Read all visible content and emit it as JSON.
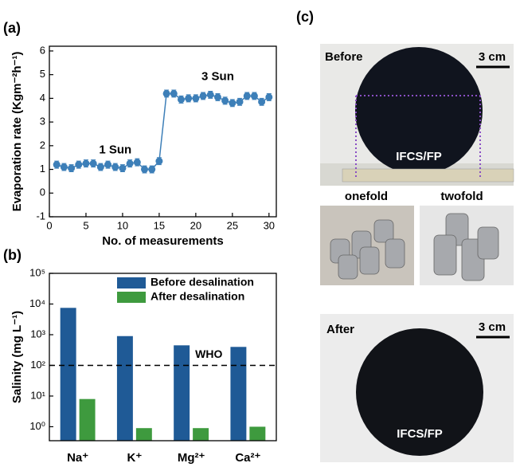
{
  "chart_data": [
    {
      "type": "line",
      "panel_label": "(a)",
      "xlabel": "No. of measurements",
      "ylabel": "Evaporation rate (Kgm⁻²h⁻¹)",
      "x": [
        1,
        2,
        3,
        4,
        5,
        6,
        7,
        8,
        9,
        10,
        11,
        12,
        13,
        14,
        15,
        16,
        17,
        18,
        19,
        20,
        21,
        22,
        23,
        24,
        25,
        26,
        27,
        28,
        29,
        30
      ],
      "series": [
        {
          "color": "#3d7fb8",
          "values": [
            1.2,
            1.1,
            1.05,
            1.2,
            1.25,
            1.25,
            1.1,
            1.2,
            1.1,
            1.05,
            1.25,
            1.3,
            1.0,
            1.0,
            1.35,
            4.2,
            4.2,
            3.95,
            4.0,
            4.0,
            4.1,
            4.15,
            4.05,
            3.9,
            3.8,
            3.85,
            4.1,
            4.1,
            3.85,
            4.05
          ],
          "errors": [
            0.15,
            0.15,
            0.15,
            0.15,
            0.15,
            0.15,
            0.15,
            0.15,
            0.15,
            0.15,
            0.15,
            0.15,
            0.15,
            0.15,
            0.15,
            0.15,
            0.15,
            0.15,
            0.15,
            0.15,
            0.15,
            0.15,
            0.15,
            0.15,
            0.15,
            0.15,
            0.15,
            0.15,
            0.15,
            0.15
          ]
        }
      ],
      "xlim": [
        0,
        31
      ],
      "xticks": [
        0,
        5,
        10,
        15,
        20,
        25,
        30
      ],
      "ylim": [
        -1,
        6.2
      ],
      "yticks": [
        -1,
        0,
        1,
        2,
        3,
        4,
        5,
        6
      ],
      "annotations": [
        {
          "text": "1 Sun",
          "x": 9,
          "y": 1.8
        },
        {
          "text": "3 Sun",
          "x": 23,
          "y": 4.9
        }
      ]
    },
    {
      "type": "bar",
      "panel_label": "(b)",
      "ylabel": "Salinity (mg L⁻¹)",
      "log_y": true,
      "categories": [
        "Na⁺",
        "K⁺",
        "Mg²⁺",
        "Ca²⁺"
      ],
      "series": [
        {
          "name": "Before desalination",
          "color": "#1f5a96",
          "values": [
            7500,
            900,
            450,
            400
          ]
        },
        {
          "name": "After desalination",
          "color": "#3e9a3e",
          "values": [
            8,
            0.9,
            0.9,
            1.0
          ]
        }
      ],
      "ylim": [
        0.35,
        100000
      ],
      "yticks": [
        {
          "value": 1,
          "label": "10⁰"
        },
        {
          "value": 10,
          "label": "10¹"
        },
        {
          "value": 100,
          "label": "10²"
        },
        {
          "value": 1000,
          "label": "10³"
        },
        {
          "value": 10000,
          "label": "10⁴"
        },
        {
          "value": 100000,
          "label": "10⁵"
        }
      ],
      "reference_line": {
        "value": 100,
        "label": "WHO"
      },
      "legend": "upper right"
    }
  ],
  "photos": {
    "panel_label": "(c)",
    "before": {
      "label": "Before",
      "scale": "3 cm",
      "sample": "IFCS/FP"
    },
    "weights": {
      "left": "onefold",
      "right": "twofold"
    },
    "after": {
      "label": "After",
      "scale": "3 cm",
      "sample": "IFCS/FP"
    }
  }
}
